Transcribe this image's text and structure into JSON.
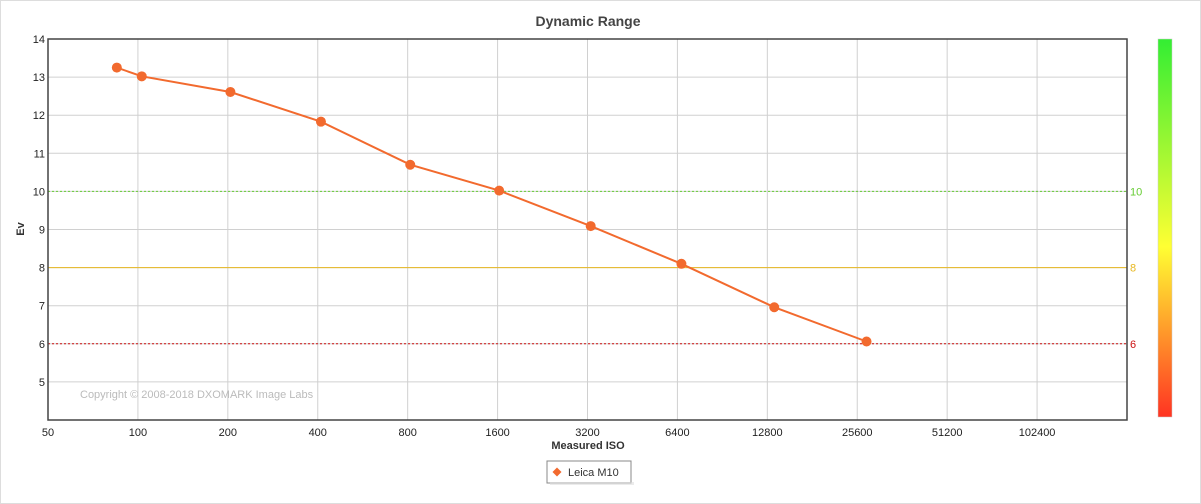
{
  "chart_data": {
    "type": "line",
    "title": "Dynamic Range",
    "xlabel": "Measured ISO",
    "ylabel": "Ev",
    "x_scale": "log2",
    "x_tick_labels": [
      "50",
      "100",
      "200",
      "400",
      "800",
      "1600",
      "3200",
      "6400",
      "12800",
      "25600",
      "51200",
      "102400"
    ],
    "xlim": [
      50,
      204800
    ],
    "ylim": [
      4,
      14
    ],
    "y_ticks": [
      5,
      6,
      7,
      8,
      9,
      10,
      11,
      12,
      13,
      14
    ],
    "grid": true,
    "legend_placement": "bottom-center",
    "series": [
      {
        "name": "Leica M10",
        "color": "#f26a2e",
        "points": [
          {
            "x": 85,
            "y": 13.25
          },
          {
            "x": 103,
            "y": 13.02
          },
          {
            "x": 204,
            "y": 12.61
          },
          {
            "x": 410,
            "y": 11.83
          },
          {
            "x": 816,
            "y": 10.7
          },
          {
            "x": 1620,
            "y": 10.02
          },
          {
            "x": 3280,
            "y": 9.09
          },
          {
            "x": 6600,
            "y": 8.1
          },
          {
            "x": 13500,
            "y": 6.96
          },
          {
            "x": 27500,
            "y": 6.06
          }
        ]
      }
    ],
    "reference_lines": [
      {
        "y": 10,
        "label": "10",
        "color": "#66cc33",
        "style": "dotted"
      },
      {
        "y": 8,
        "label": "8",
        "color": "#e8b820",
        "style": "solid"
      },
      {
        "y": 6,
        "label": "6",
        "color": "#cc1111",
        "style": "dotted"
      }
    ],
    "copyright": "Copyright © 2008-2018 DXOMARK Image Labs",
    "color_scale": {
      "top_color": "#33ee33",
      "middle_color": "#ffff33",
      "bottom_color": "#ff3322"
    }
  }
}
